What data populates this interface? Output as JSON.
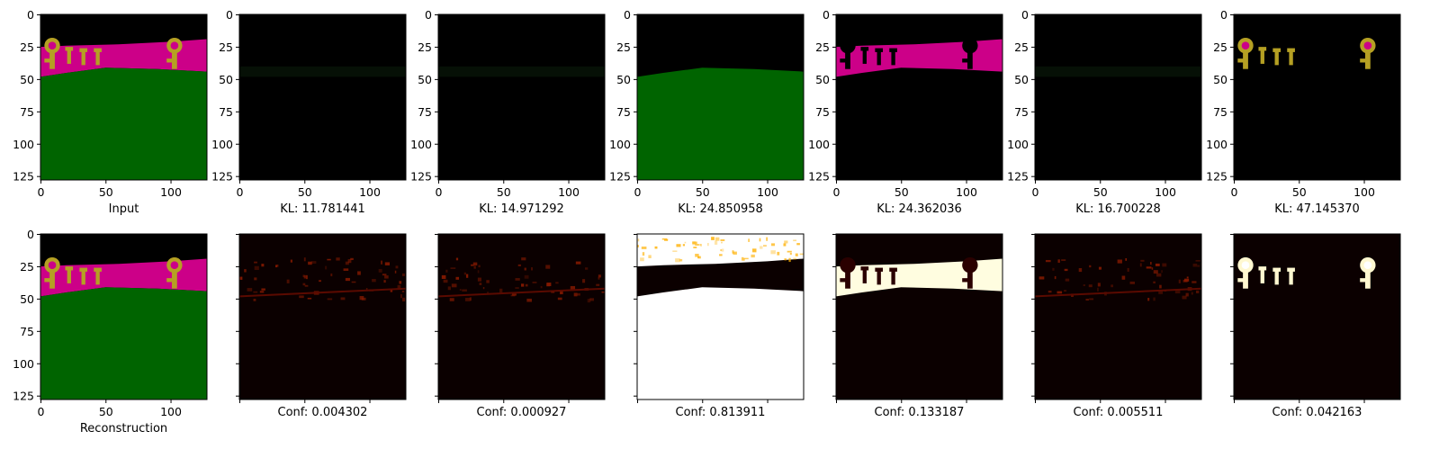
{
  "chart_data": {
    "type": "image-grid",
    "axis": {
      "xlim": [
        0,
        128
      ],
      "ylim": [
        128,
        0
      ],
      "xticks": [
        0,
        50,
        100
      ],
      "yticks": [
        0,
        25,
        50,
        75,
        100,
        125
      ]
    },
    "rows": [
      {
        "panels": [
          {
            "content": "scene",
            "caption": "Input"
          },
          {
            "content": "near-empty",
            "caption": "KL: 11.781441"
          },
          {
            "content": "near-empty",
            "caption": "KL: 14.971292"
          },
          {
            "content": "ground-only",
            "caption": "KL: 24.850958"
          },
          {
            "content": "wall-only",
            "caption": "KL: 24.362036"
          },
          {
            "content": "near-empty",
            "caption": "KL: 16.700228"
          },
          {
            "content": "keys-only",
            "caption": "KL: 47.145370"
          }
        ]
      },
      {
        "panels": [
          {
            "content": "scene",
            "caption": "Reconstruction"
          },
          {
            "content": "mask-faint",
            "caption": "Conf: 0.004302"
          },
          {
            "content": "mask-faint",
            "caption": "Conf: 0.000927"
          },
          {
            "content": "mask-ground",
            "caption": "Conf: 0.813911"
          },
          {
            "content": "mask-wall",
            "caption": "Conf: 0.133187"
          },
          {
            "content": "mask-faint",
            "caption": "Conf: 0.005511"
          },
          {
            "content": "mask-keys",
            "caption": "Conf: 0.042163"
          }
        ]
      }
    ],
    "colors": {
      "background": "#000000",
      "wall": "#cc0088",
      "ground": "#006400",
      "key": "#b5a023",
      "heat_dark": "#0b0000",
      "heat_hot": "#ffffff"
    }
  }
}
